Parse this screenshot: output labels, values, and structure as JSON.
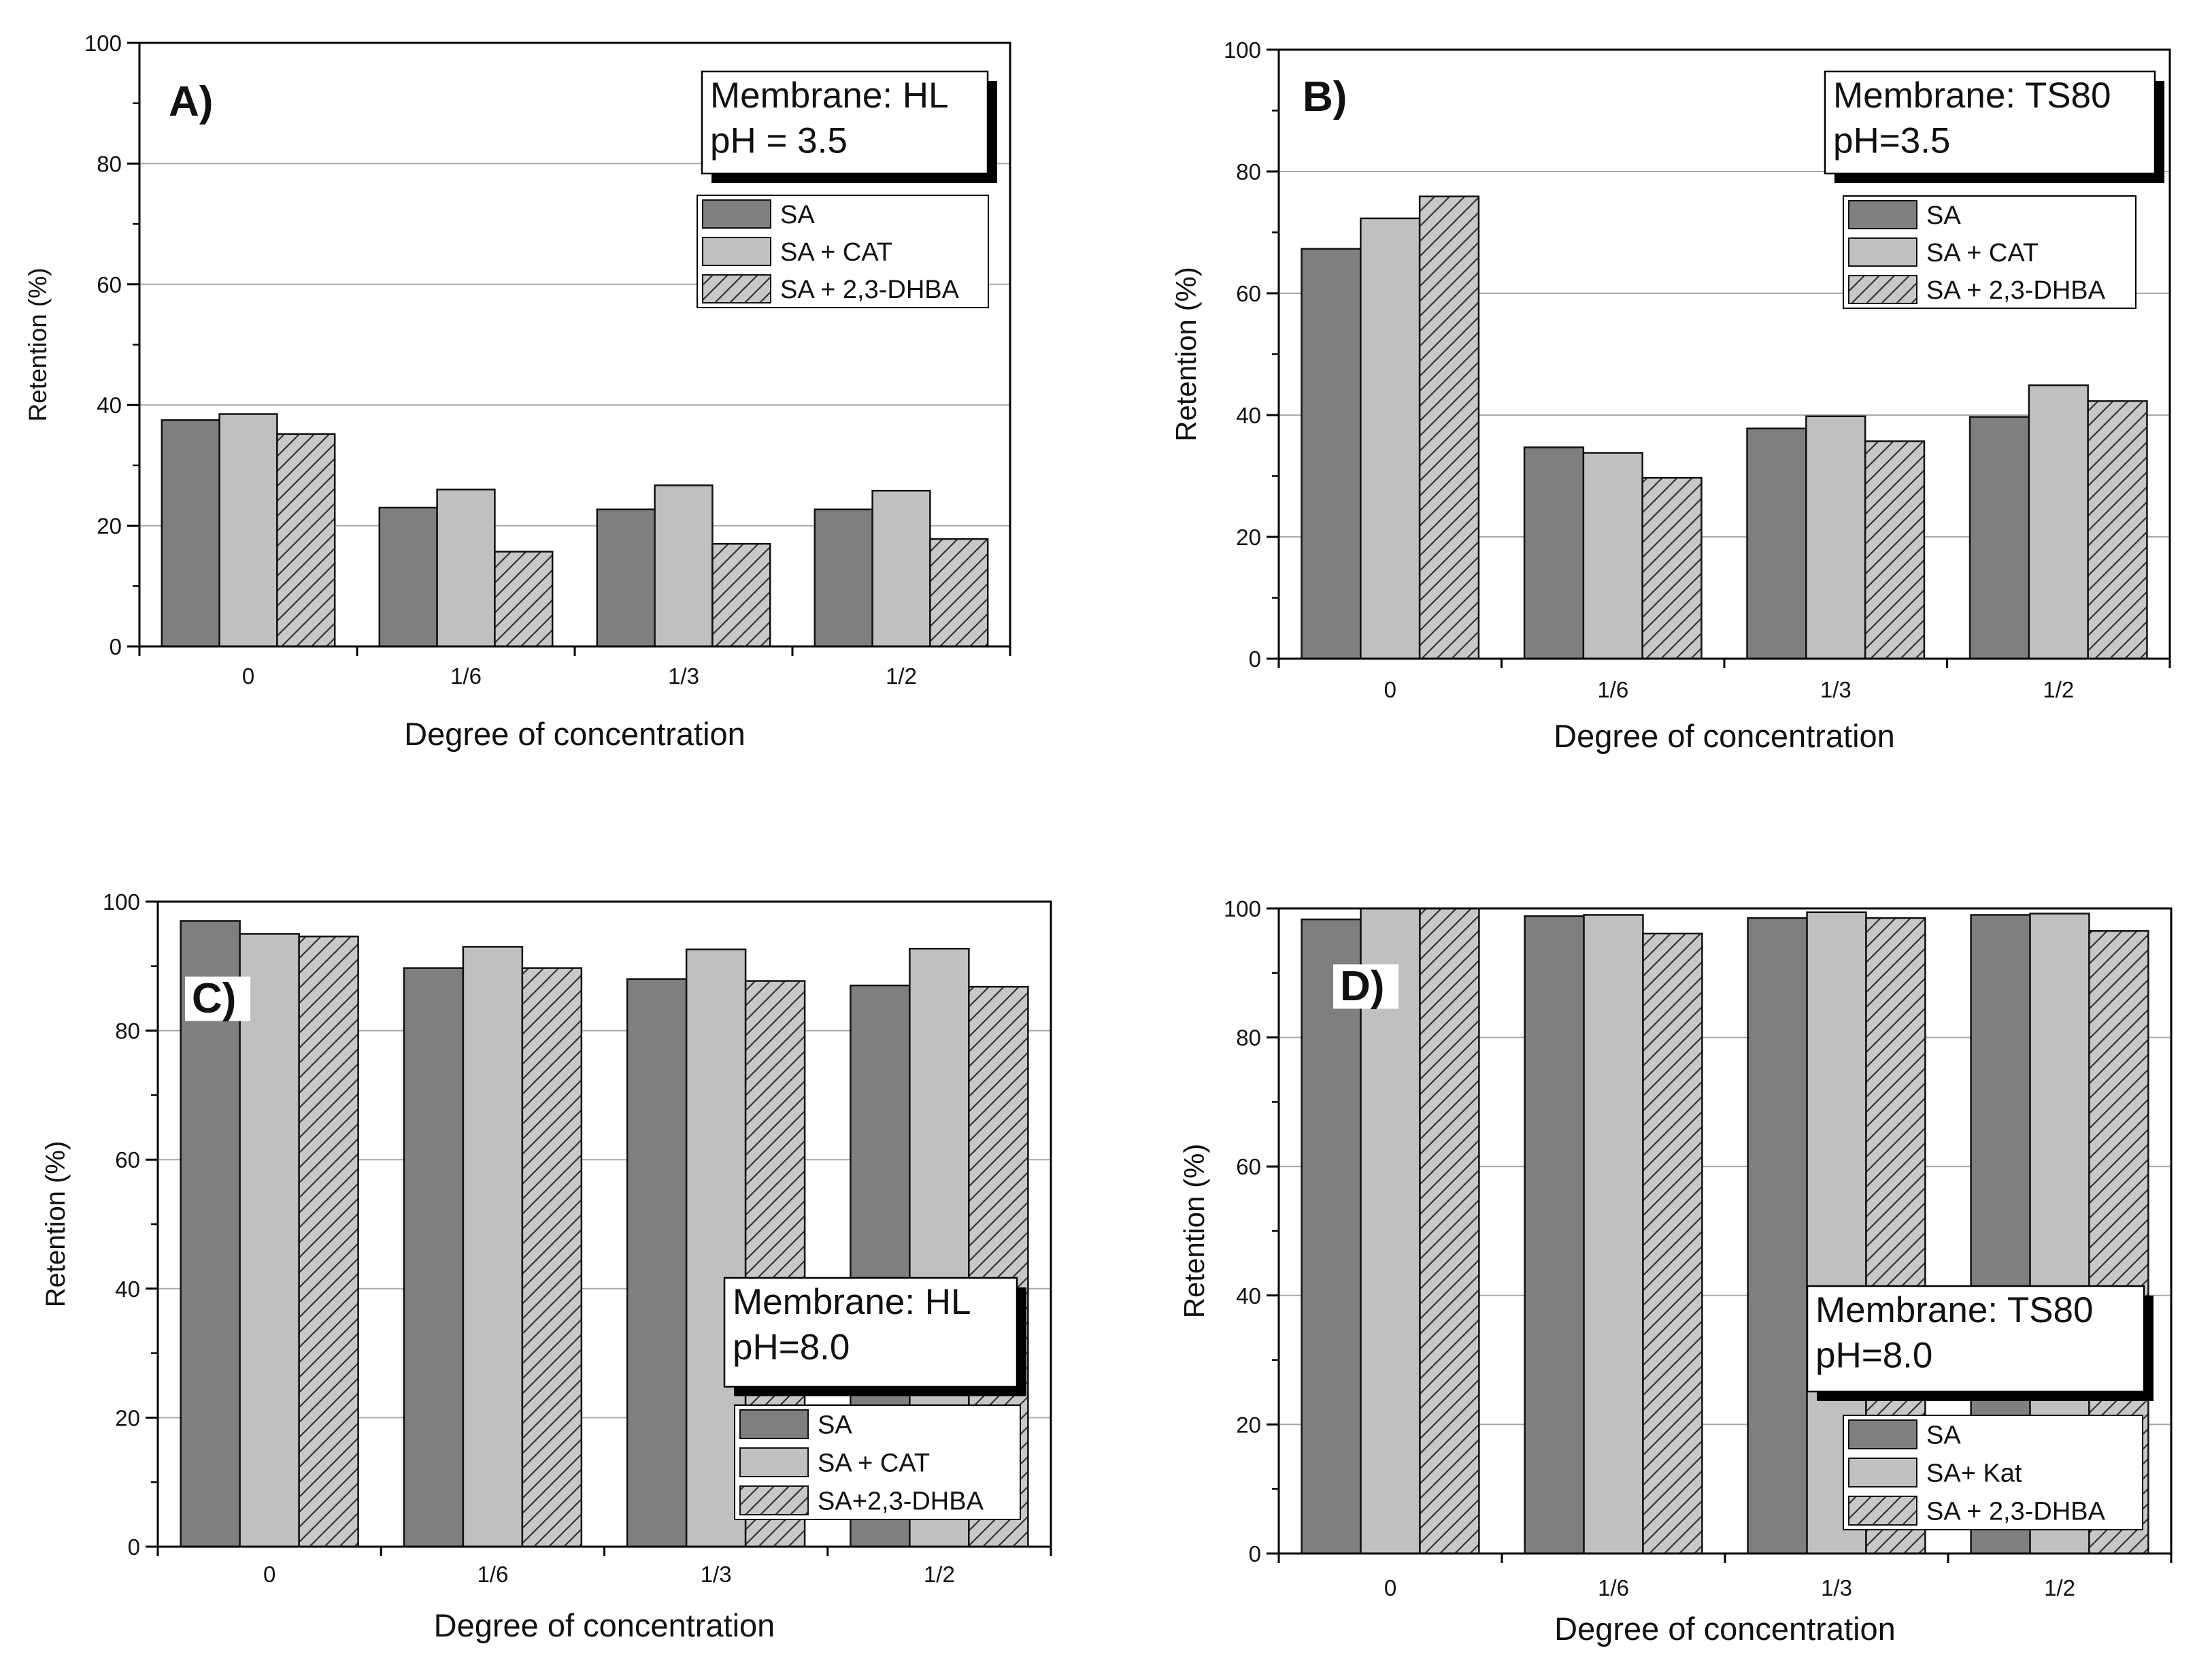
{
  "colors": {
    "sa": "#7f7f7f",
    "sa_cat": "#c0c0c0",
    "sa_dhba": "#c8c8c8",
    "hatch": "#333333",
    "grid": "#a8a8a8",
    "axis": "#000000"
  },
  "chart_data": [
    {
      "type": "bar",
      "panel": "A)",
      "annotation": [
        "Membrane: HL",
        "pH = 3.5"
      ],
      "categories": [
        "0",
        "1/6",
        "1/3",
        "1/2"
      ],
      "series": [
        {
          "name": "SA",
          "values": [
            37.5,
            23,
            22.7,
            22.7
          ]
        },
        {
          "name": "SA + CAT",
          "values": [
            38.5,
            26,
            26.7,
            25.8
          ]
        },
        {
          "name": "SA + 2,3-DHBA",
          "values": [
            35.2,
            15.7,
            17,
            17.8
          ]
        }
      ],
      "xlabel": "Degree of concentration",
      "ylabel": "Retention (%)",
      "ylim": [
        0,
        100
      ],
      "yticks": [
        0,
        20,
        40,
        60,
        80,
        100
      ],
      "legend_position": "top-right",
      "annotation_position": "top-right"
    },
    {
      "type": "bar",
      "panel": "B)",
      "annotation": [
        "Membrane: TS80",
        "pH=3.5"
      ],
      "categories": [
        "0",
        "1/6",
        "1/3",
        "1/2"
      ],
      "series": [
        {
          "name": "SA",
          "values": [
            67.3,
            34.7,
            37.8,
            39.7
          ]
        },
        {
          "name": "SA + CAT",
          "values": [
            72.3,
            33.8,
            39.8,
            44.9
          ]
        },
        {
          "name": "SA + 2,3-DHBA",
          "values": [
            75.9,
            29.7,
            35.7,
            42.3
          ]
        }
      ],
      "xlabel": "Degree of concentration",
      "ylabel": "Retention (%)",
      "ylim": [
        0,
        100
      ],
      "yticks": [
        0,
        20,
        40,
        60,
        80,
        100
      ],
      "legend_position": "top-right",
      "annotation_position": "top-right"
    },
    {
      "type": "bar",
      "panel": "C)",
      "annotation": [
        "Membrane: HL",
        "pH=8.0"
      ],
      "categories": [
        "0",
        "1/6",
        "1/3",
        "1/2"
      ],
      "series": [
        {
          "name": "SA",
          "values": [
            97,
            89.7,
            88,
            87
          ]
        },
        {
          "name": "SA + CAT",
          "values": [
            95,
            93,
            92.6,
            92.7
          ]
        },
        {
          "name": "SA+2,3-DHBA",
          "values": [
            94.6,
            89.7,
            87.7,
            86.8
          ]
        }
      ],
      "xlabel": "Degree of concentration",
      "ylabel": "Retention (%)",
      "ylim": [
        0,
        100
      ],
      "yticks": [
        0,
        20,
        40,
        60,
        80,
        100
      ],
      "legend_position": "bottom-right",
      "annotation_position": "bottom-right"
    },
    {
      "type": "bar",
      "panel": "D)",
      "annotation": [
        "Membrane: TS80",
        "pH=8.0"
      ],
      "categories": [
        "0",
        "1/6",
        "1/3",
        "1/2"
      ],
      "series": [
        {
          "name": "SA",
          "values": [
            98.3,
            98.8,
            98.5,
            99
          ]
        },
        {
          "name": "SA+ Kat",
          "values": [
            100,
            99,
            99.4,
            99.2
          ]
        },
        {
          "name": "SA + 2,3-DHBA",
          "values": [
            100,
            96.1,
            98.5,
            96.5
          ]
        }
      ],
      "xlabel": "Degree of concentration",
      "ylabel": "Retention (%)",
      "ylim": [
        0,
        100
      ],
      "yticks": [
        0,
        20,
        40,
        60,
        80,
        100
      ],
      "legend_position": "bottom-right",
      "annotation_position": "bottom-right"
    }
  ]
}
